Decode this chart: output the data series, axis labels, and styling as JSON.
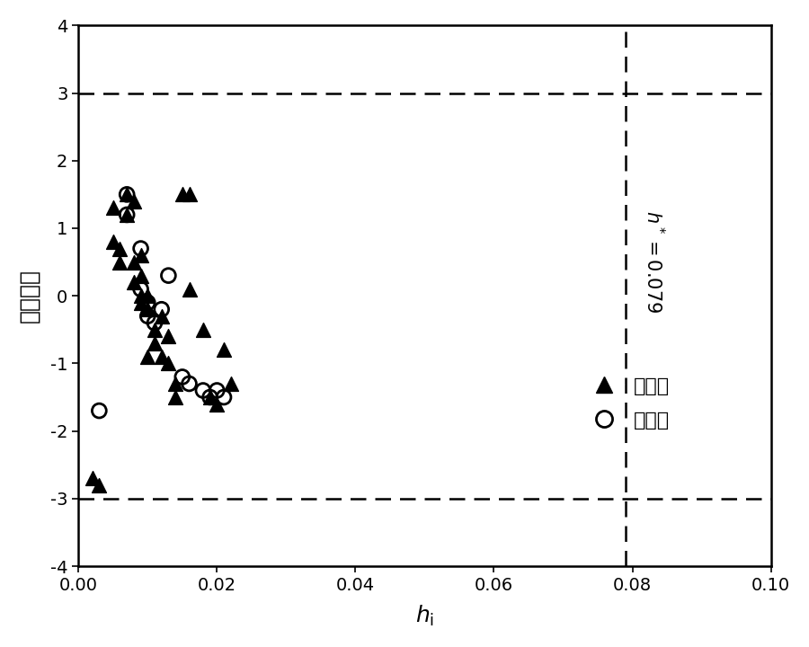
{
  "title": "",
  "xlabel_math": "$h_{\\mathrm{i}}$",
  "ylabel": "标准残差",
  "xlim": [
    0,
    0.1
  ],
  "ylim": [
    -4,
    4
  ],
  "xticks": [
    0,
    0.02,
    0.04,
    0.06,
    0.08,
    0.1
  ],
  "yticks": [
    -4,
    -3,
    -2,
    -1,
    0,
    1,
    2,
    3,
    4
  ],
  "hstar": 0.079,
  "train_x": [
    0.002,
    0.003,
    0.005,
    0.005,
    0.006,
    0.006,
    0.007,
    0.007,
    0.008,
    0.008,
    0.008,
    0.009,
    0.009,
    0.009,
    0.009,
    0.01,
    0.01,
    0.01,
    0.011,
    0.011,
    0.012,
    0.012,
    0.013,
    0.013,
    0.014,
    0.014,
    0.015,
    0.016,
    0.016,
    0.018,
    0.019,
    0.02,
    0.021,
    0.022
  ],
  "train_y": [
    -2.7,
    -2.8,
    0.8,
    1.3,
    0.5,
    0.7,
    1.2,
    1.5,
    1.4,
    0.5,
    0.2,
    0.6,
    0.3,
    0.0,
    -0.1,
    -0.2,
    0.0,
    -0.9,
    -0.5,
    -0.7,
    -0.9,
    -0.3,
    -0.6,
    -1.0,
    -1.3,
    -1.5,
    1.5,
    1.5,
    0.1,
    -0.5,
    -1.5,
    -1.6,
    -0.8,
    -1.3
  ],
  "valid_x": [
    0.003,
    0.007,
    0.007,
    0.009,
    0.009,
    0.01,
    0.01,
    0.011,
    0.012,
    0.013,
    0.015,
    0.016,
    0.018,
    0.019,
    0.02,
    0.021
  ],
  "valid_y": [
    -1.7,
    1.5,
    1.2,
    0.7,
    0.1,
    -0.3,
    -0.1,
    -0.4,
    -0.2,
    0.3,
    -1.2,
    -1.3,
    -1.4,
    -1.5,
    -1.4,
    -1.5
  ],
  "legend_train": "训练集",
  "legend_valid": "验证集",
  "background_color": "#ffffff",
  "fontsize_label": 18,
  "fontsize_tick": 14,
  "fontsize_legend": 16,
  "fontsize_annotation": 15
}
